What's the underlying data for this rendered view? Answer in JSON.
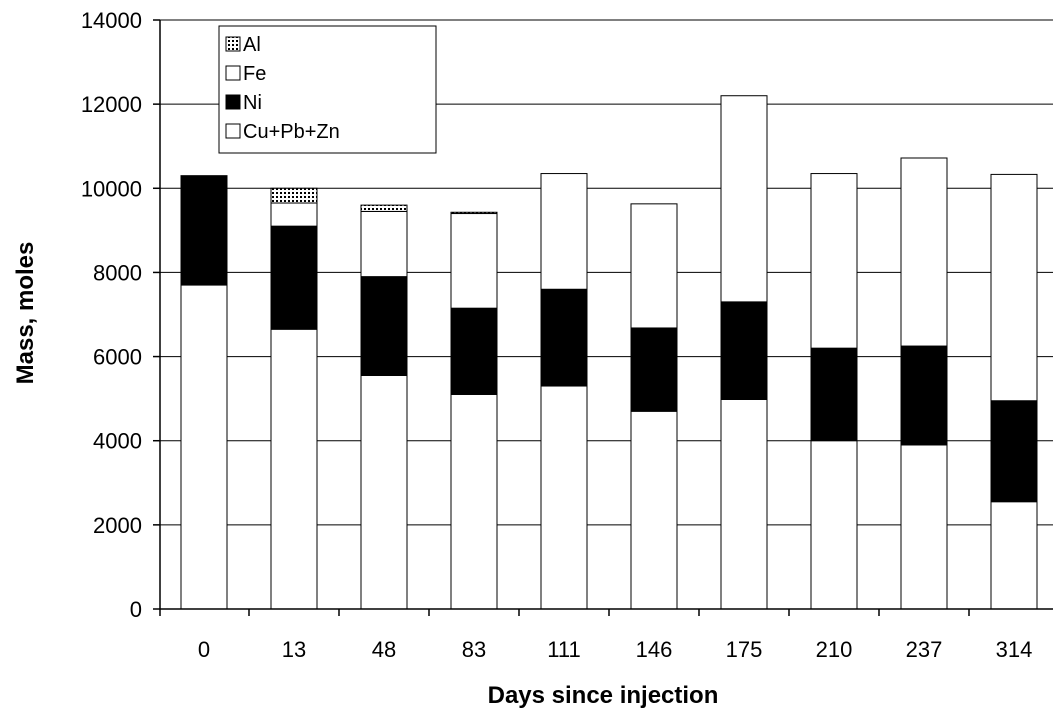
{
  "chart_data": {
    "type": "bar",
    "stacked": true,
    "title": "",
    "xlabel": "Days since injection",
    "ylabel": "Mass, moles",
    "ylim": [
      0,
      14000
    ],
    "yticks": [
      0,
      2000,
      4000,
      6000,
      8000,
      10000,
      12000,
      14000
    ],
    "grid": true,
    "legend_position": "top-left",
    "categories": [
      "0",
      "13",
      "48",
      "83",
      "111",
      "146",
      "175",
      "210",
      "237",
      "314"
    ],
    "series": [
      {
        "name": "Cu+Pb+Zn",
        "pattern": "solid",
        "color": "#ffffff",
        "values": [
          7700,
          6650,
          5550,
          5100,
          5300,
          4700,
          4980,
          4000,
          3900,
          2550
        ]
      },
      {
        "name": "Ni",
        "pattern": "solid",
        "color": "#000000",
        "values": [
          2600,
          2450,
          2350,
          2050,
          2300,
          1980,
          2320,
          2200,
          2350,
          2400
        ]
      },
      {
        "name": "Fe",
        "pattern": "solid",
        "color": "#ffffff",
        "values": [
          0,
          550,
          1550,
          2250,
          2750,
          2950,
          4900,
          4150,
          4470,
          5380
        ]
      },
      {
        "name": "Al",
        "pattern": "dotted",
        "color": "#ffffff",
        "values": [
          0,
          350,
          150,
          30,
          0,
          0,
          0,
          0,
          0,
          0
        ]
      }
    ],
    "legend_order": [
      "Al",
      "Fe",
      "Ni",
      "Cu+Pb+Zn"
    ]
  }
}
